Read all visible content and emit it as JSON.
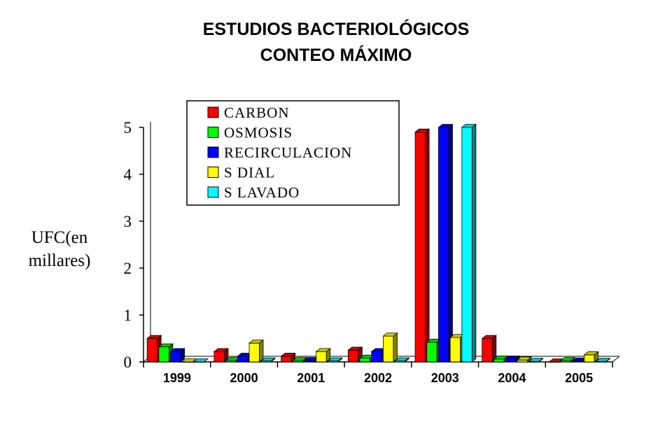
{
  "chart_data": {
    "type": "bar",
    "title": "ESTUDIOS BACTERIOLÓGICOS",
    "subtitle": "CONTEO MÁXIMO",
    "ylabel_line1": "UFC(en",
    "ylabel_line2": "millares)",
    "xlabel": "",
    "ylim": [
      0,
      5
    ],
    "yticks": [
      "0",
      "1",
      "2",
      "3",
      "4",
      "5"
    ],
    "categories": [
      "1999",
      "2000",
      "2001",
      "2002",
      "2003",
      "2004",
      "2005"
    ],
    "legend_placement": "top-left inside plot",
    "series": [
      {
        "name": "CARBON",
        "color": "#ff0000",
        "values": [
          0.5,
          0.22,
          0.12,
          0.25,
          4.9,
          0.5,
          0.0
        ]
      },
      {
        "name": "OSMOSIS",
        "color": "#00ff00",
        "values": [
          0.32,
          0.03,
          0.03,
          0.08,
          0.42,
          0.06,
          0.03
        ]
      },
      {
        "name": "RECIRCULACION",
        "color": "#0000ff",
        "values": [
          0.22,
          0.12,
          0.03,
          0.22,
          5.0,
          0.06,
          0.02
        ]
      },
      {
        "name": "S DIAL",
        "color": "#ffff00",
        "values": [
          0.0,
          0.4,
          0.22,
          0.55,
          0.52,
          0.04,
          0.15
        ]
      },
      {
        "name": "S LAVADO",
        "color": "#00ffff",
        "values": [
          0.0,
          0.02,
          0.02,
          0.02,
          5.0,
          0.01,
          0.01
        ]
      }
    ]
  }
}
